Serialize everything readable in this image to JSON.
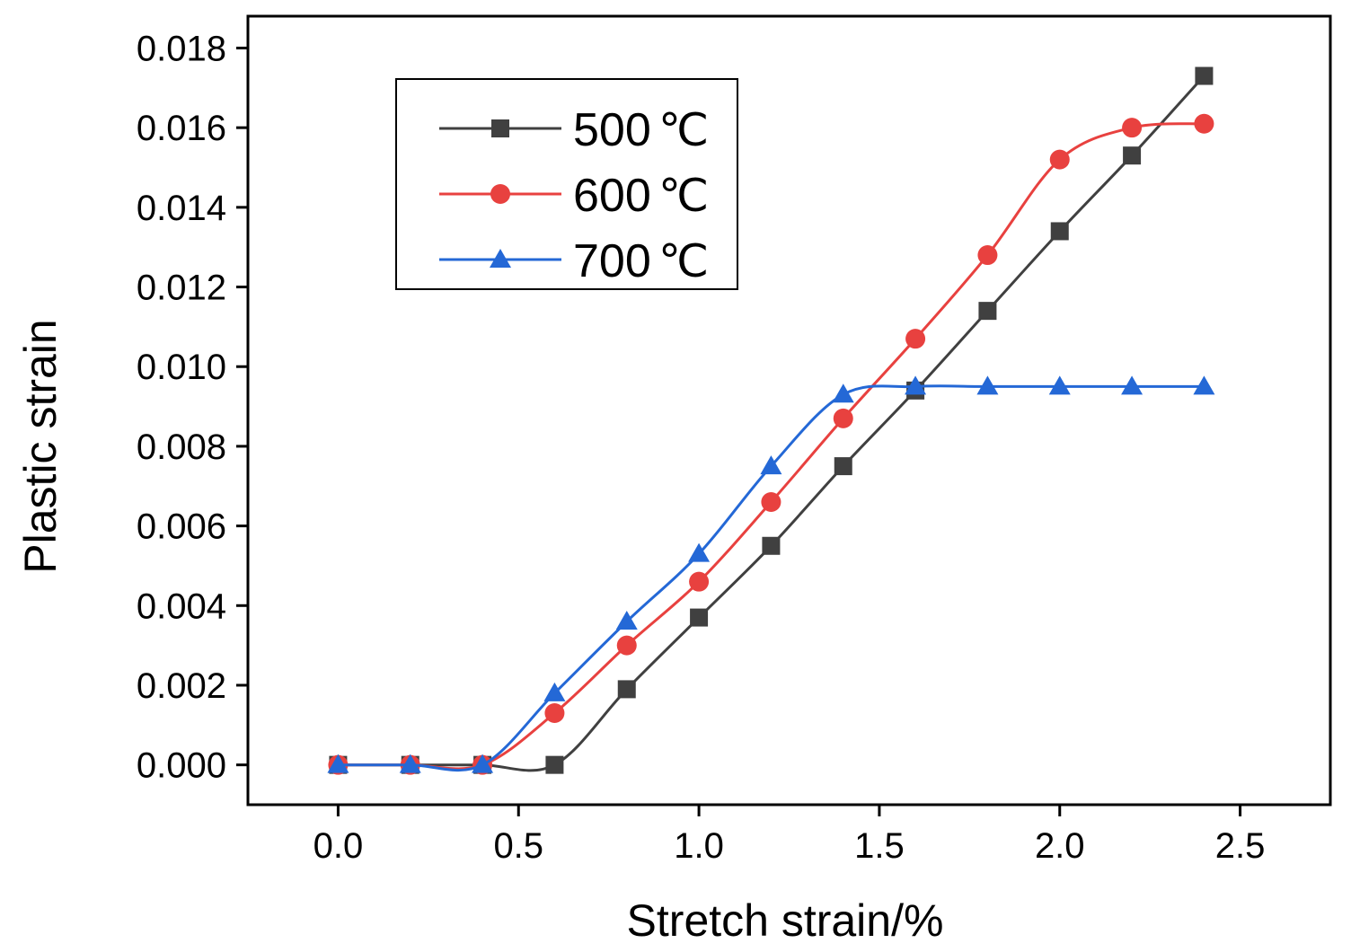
{
  "chart_data": {
    "type": "line",
    "title": "",
    "xlabel": "Stretch strain/%",
    "ylabel": "Plastic strain",
    "xlim": [
      -0.25,
      2.75
    ],
    "ylim": [
      -0.001,
      0.0188
    ],
    "xticks": [
      0.0,
      0.5,
      1.0,
      1.5,
      2.0,
      2.5
    ],
    "xtick_labels": [
      "0.0",
      "0.5",
      "1.0",
      "1.5",
      "2.0",
      "2.5"
    ],
    "yticks": [
      0.0,
      0.002,
      0.004,
      0.006,
      0.008,
      0.01,
      0.012,
      0.014,
      0.016,
      0.018
    ],
    "ytick_labels": [
      "0.000",
      "0.002",
      "0.004",
      "0.006",
      "0.008",
      "0.010",
      "0.012",
      "0.014",
      "0.016",
      "0.018"
    ],
    "grid": false,
    "legend_position": "top-left",
    "x": [
      0.0,
      0.2,
      0.4,
      0.6,
      0.8,
      1.0,
      1.2,
      1.4,
      1.6,
      1.8,
      2.0,
      2.2,
      2.4
    ],
    "series": [
      {
        "name": "500",
        "unit": "℃",
        "marker": "square",
        "color": "#404040",
        "values": [
          0.0,
          0.0,
          0.0,
          0.0,
          0.0019,
          0.0037,
          0.0055,
          0.0075,
          0.0094,
          0.0114,
          0.0134,
          0.0153,
          0.0173
        ]
      },
      {
        "name": "600",
        "unit": "℃",
        "marker": "circle",
        "color": "#e8413f",
        "values": [
          0.0,
          0.0,
          0.0,
          0.0013,
          0.003,
          0.0046,
          0.0066,
          0.0087,
          0.0107,
          0.0128,
          0.0152,
          0.016,
          0.0161
        ]
      },
      {
        "name": "700",
        "unit": "℃",
        "marker": "triangle",
        "color": "#2468d6",
        "values": [
          0.0,
          0.0,
          0.0,
          0.0018,
          0.0036,
          0.0053,
          0.0075,
          0.0093,
          0.0095,
          0.0095,
          0.0095,
          0.0095,
          0.0095
        ]
      }
    ]
  }
}
